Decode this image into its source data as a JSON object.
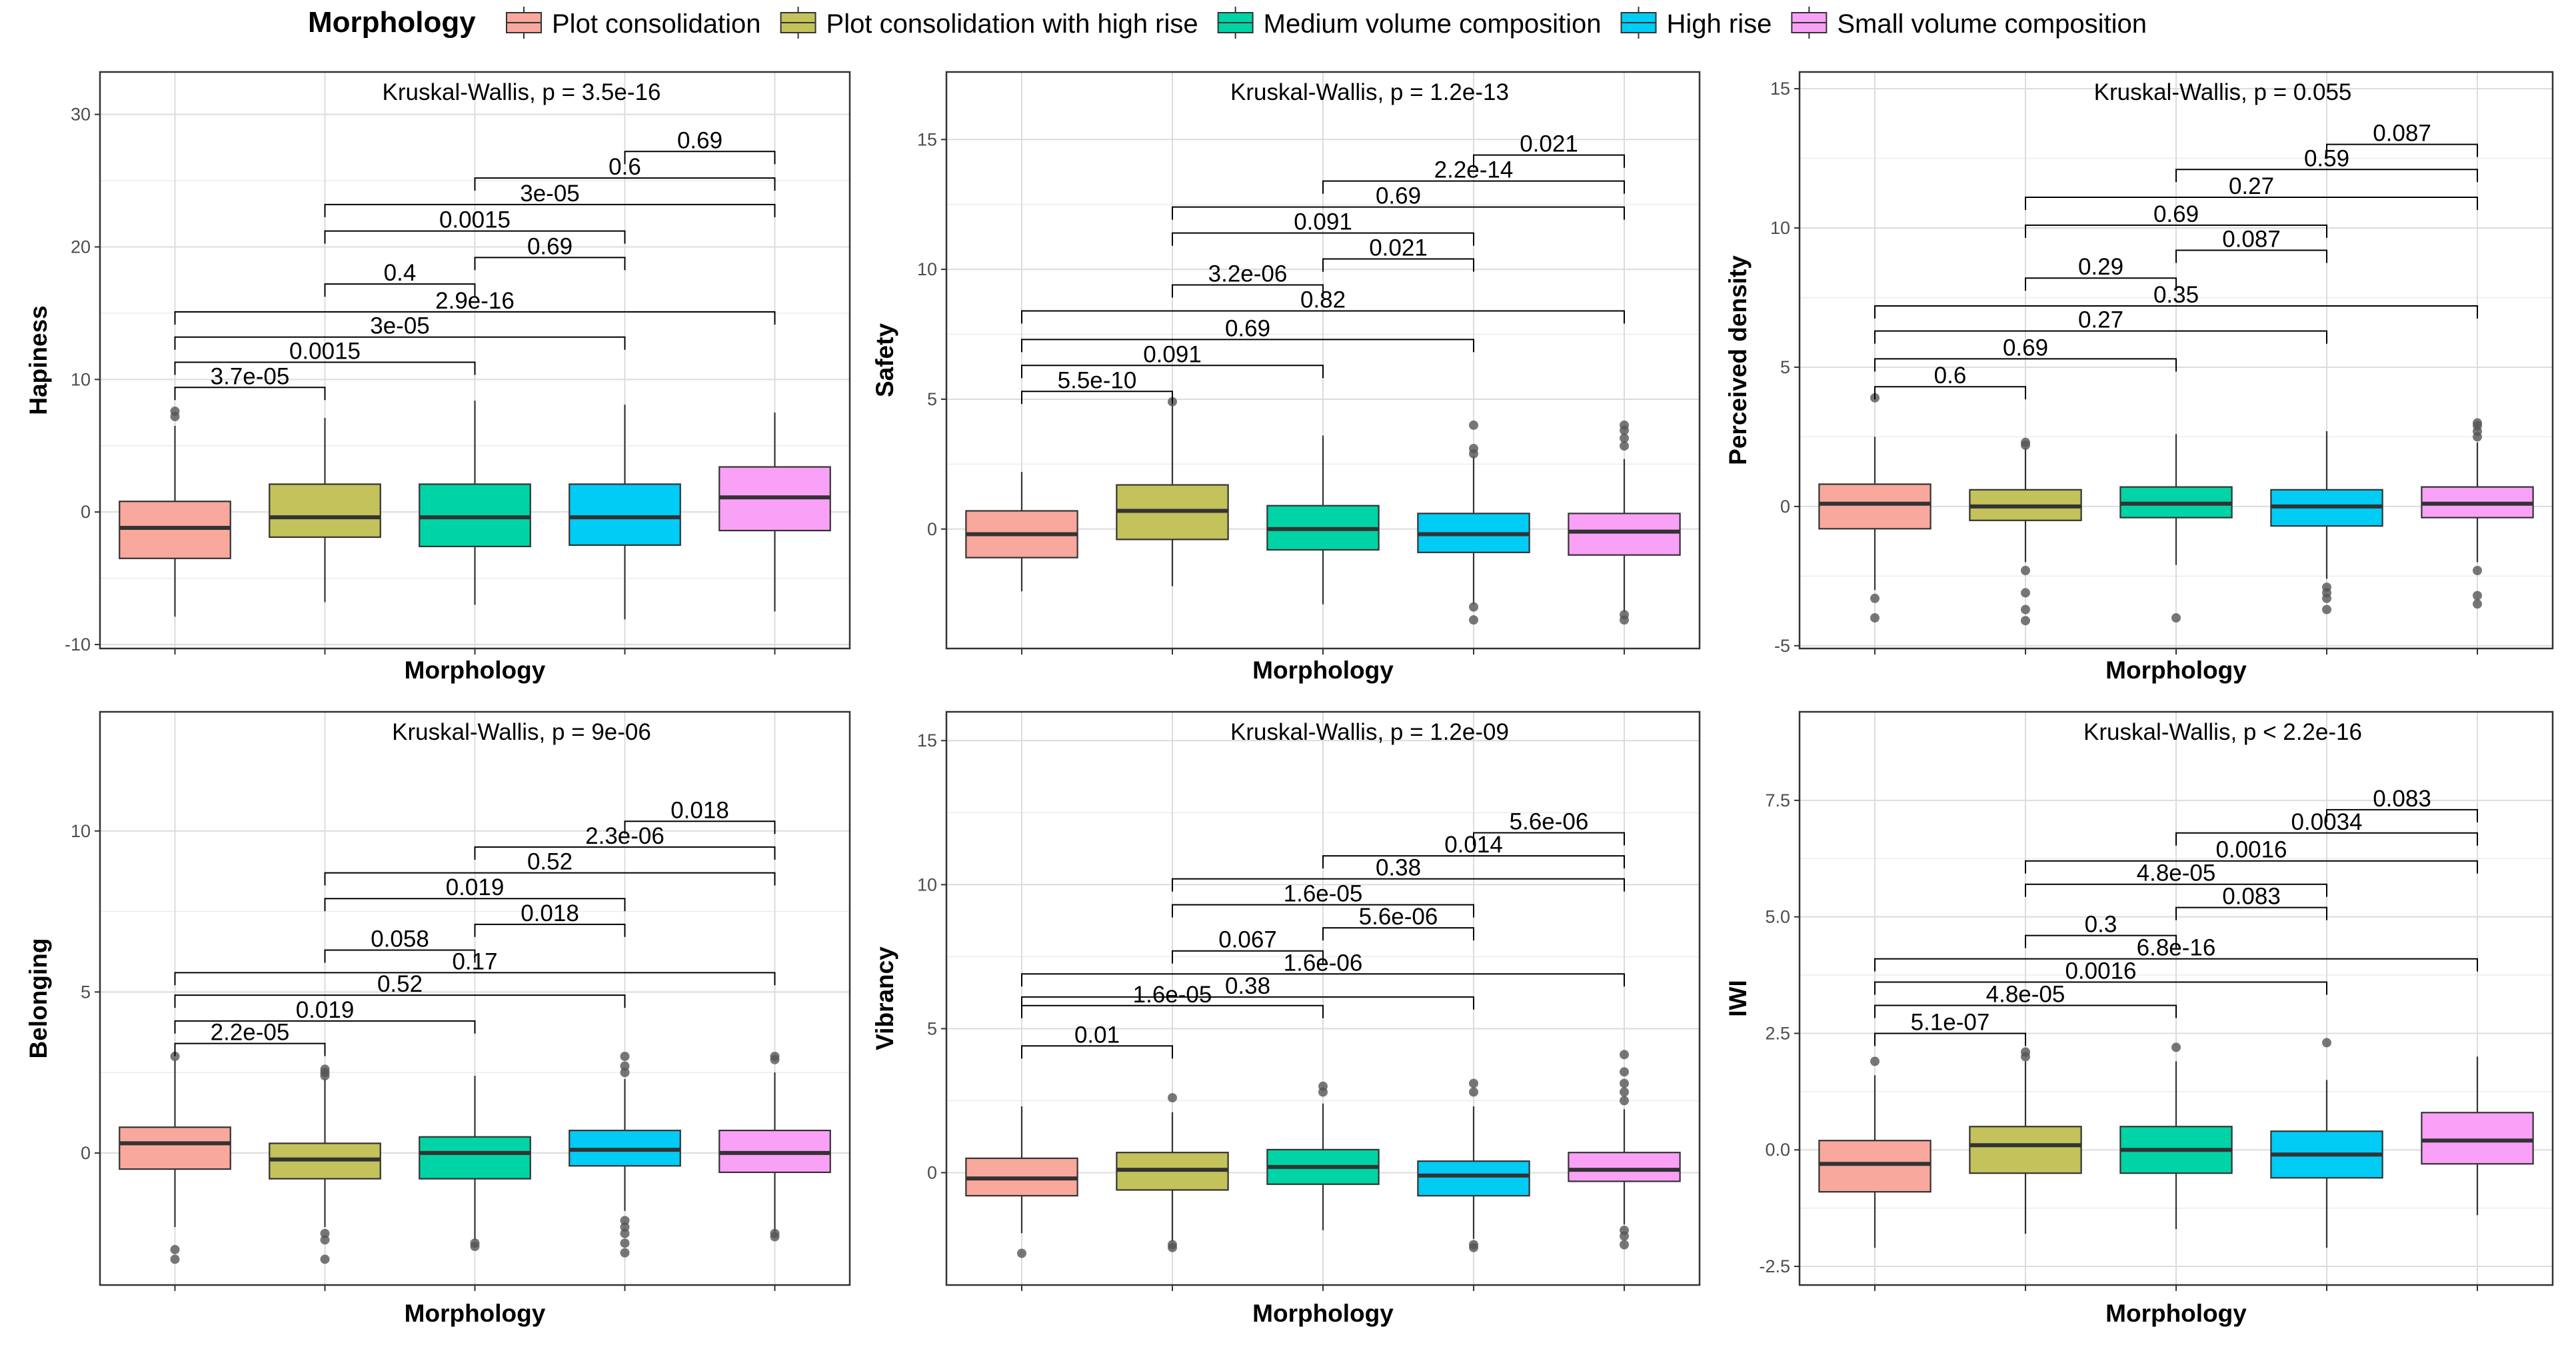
{
  "legend": {
    "title": "Morphology",
    "items": [
      {
        "label": "Plot consolidation",
        "color": "#F8A89C"
      },
      {
        "label": "Plot consolidation with high rise",
        "color": "#C3C25B"
      },
      {
        "label": "Medium volume composition",
        "color": "#00D4A6"
      },
      {
        "label": "High rise",
        "color": "#00CCF6"
      },
      {
        "label": "Small volume composition",
        "color": "#F9A1F6"
      }
    ]
  },
  "chart_data": [
    {
      "type": "box",
      "id": "p1",
      "title": "",
      "xlabel": "Morphology",
      "ylabel": "Hapiness",
      "annotation": "Kruskal-Wallis, p = 3.5e-16",
      "ylim": [
        -10.3,
        33.2
      ],
      "yticks": [
        -10,
        0,
        10,
        20,
        30
      ],
      "categories": [
        "Plot consolidation",
        "Plot consolidation with high rise",
        "Medium volume composition",
        "High rise",
        "Small volume composition"
      ],
      "boxes": [
        {
          "min": -7.9,
          "q1": -3.5,
          "median": -1.2,
          "q3": 0.8,
          "max": 6.5,
          "outliers": [
            7.2,
            7.6
          ]
        },
        {
          "min": -6.8,
          "q1": -1.9,
          "median": -0.4,
          "q3": 2.1,
          "max": 7.1,
          "outliers": []
        },
        {
          "min": -7.0,
          "q1": -2.6,
          "median": -0.4,
          "q3": 2.1,
          "max": 8.4,
          "outliers": []
        },
        {
          "min": -8.1,
          "q1": -2.5,
          "median": -0.4,
          "q3": 2.1,
          "max": 8.1,
          "outliers": []
        },
        {
          "min": -7.5,
          "q1": -1.4,
          "median": 1.1,
          "q3": 3.4,
          "max": 7.5,
          "outliers": []
        }
      ],
      "comparisons": [
        {
          "from": 1,
          "to": 2,
          "y": 9.4,
          "label": "3.7e-05"
        },
        {
          "from": 1,
          "to": 3,
          "y": 11.3,
          "label": "0.0015"
        },
        {
          "from": 1,
          "to": 4,
          "y": 13.2,
          "label": "3e-05"
        },
        {
          "from": 1,
          "to": 5,
          "y": 15.1,
          "label": "2.9e-16"
        },
        {
          "from": 2,
          "to": 3,
          "y": 17.2,
          "label": "0.4"
        },
        {
          "from": 3,
          "to": 4,
          "y": 19.2,
          "label": "0.69"
        },
        {
          "from": 2,
          "to": 4,
          "y": 21.2,
          "label": "0.0015"
        },
        {
          "from": 2,
          "to": 5,
          "y": 23.2,
          "label": "3e-05"
        },
        {
          "from": 3,
          "to": 5,
          "y": 25.2,
          "label": "0.6"
        },
        {
          "from": 4,
          "to": 5,
          "y": 27.2,
          "label": "0.69"
        }
      ]
    },
    {
      "type": "box",
      "id": "p2",
      "title": "",
      "xlabel": "Morphology",
      "ylabel": "Safety",
      "annotation": "Kruskal-Wallis, p = 1.2e-13",
      "ylim": [
        -4.6,
        17.6
      ],
      "yticks": [
        0,
        5,
        10,
        15
      ],
      "categories": [
        "Plot consolidation",
        "Plot consolidation with high rise",
        "Medium volume composition",
        "High rise",
        "Small volume composition"
      ],
      "boxes": [
        {
          "min": -2.4,
          "q1": -1.1,
          "median": -0.2,
          "q3": 0.7,
          "max": 2.2,
          "outliers": []
        },
        {
          "min": -2.2,
          "q1": -0.4,
          "median": 0.7,
          "q3": 1.7,
          "max": 4.8,
          "outliers": [
            4.9
          ]
        },
        {
          "min": -2.9,
          "q1": -0.8,
          "median": 0.0,
          "q3": 0.9,
          "max": 3.6,
          "outliers": []
        },
        {
          "min": -2.9,
          "q1": -0.9,
          "median": -0.2,
          "q3": 0.6,
          "max": 2.8,
          "outliers": [
            -3.0,
            -3.5,
            2.9,
            3.1,
            4.0
          ]
        },
        {
          "min": -3.2,
          "q1": -1.0,
          "median": -0.1,
          "q3": 0.6,
          "max": 2.7,
          "outliers": [
            -3.3,
            -3.5,
            3.2,
            3.5,
            3.8,
            4.0
          ]
        }
      ],
      "comparisons": [
        {
          "from": 1,
          "to": 2,
          "y": 5.3,
          "label": "5.5e-10"
        },
        {
          "from": 1,
          "to": 3,
          "y": 6.3,
          "label": "0.091"
        },
        {
          "from": 1,
          "to": 4,
          "y": 7.3,
          "label": "0.69"
        },
        {
          "from": 1,
          "to": 5,
          "y": 8.4,
          "label": "0.82"
        },
        {
          "from": 2,
          "to": 3,
          "y": 9.4,
          "label": "3.2e-06"
        },
        {
          "from": 3,
          "to": 4,
          "y": 10.4,
          "label": "0.021"
        },
        {
          "from": 2,
          "to": 4,
          "y": 11.4,
          "label": "0.091"
        },
        {
          "from": 2,
          "to": 5,
          "y": 12.4,
          "label": "0.69"
        },
        {
          "from": 3,
          "to": 5,
          "y": 13.4,
          "label": "2.2e-14"
        },
        {
          "from": 4,
          "to": 5,
          "y": 14.4,
          "label": "0.021"
        }
      ]
    },
    {
      "type": "box",
      "id": "p3",
      "title": "",
      "xlabel": "Morphology",
      "ylabel": "Perceived density",
      "annotation": "Kruskal-Wallis, p = 0.055",
      "ylim": [
        -5.1,
        15.6
      ],
      "yticks": [
        -5,
        0,
        5,
        10,
        15
      ],
      "categories": [
        "Plot consolidation",
        "Plot consolidation with high rise",
        "Medium volume composition",
        "High rise",
        "Small volume composition"
      ],
      "boxes": [
        {
          "min": -3.0,
          "q1": -0.8,
          "median": 0.1,
          "q3": 0.8,
          "max": 2.5,
          "outliers": [
            -3.3,
            -4.0,
            3.9
          ]
        },
        {
          "min": -2.0,
          "q1": -0.5,
          "median": 0.0,
          "q3": 0.6,
          "max": 2.1,
          "outliers": [
            -2.3,
            -3.1,
            -3.7,
            -4.1,
            2.2,
            2.3
          ]
        },
        {
          "min": -2.1,
          "q1": -0.4,
          "median": 0.1,
          "q3": 0.7,
          "max": 2.6,
          "outliers": [
            -4.0
          ]
        },
        {
          "min": -2.6,
          "q1": -0.7,
          "median": 0.0,
          "q3": 0.6,
          "max": 2.7,
          "outliers": [
            -2.9,
            -3.1,
            -3.3,
            -3.7
          ]
        },
        {
          "min": -2.0,
          "q1": -0.4,
          "median": 0.1,
          "q3": 0.7,
          "max": 2.3,
          "outliers": [
            -2.3,
            -3.2,
            -3.5,
            2.5,
            2.7,
            2.9,
            3.0
          ]
        }
      ],
      "comparisons": [
        {
          "from": 1,
          "to": 2,
          "y": 4.3,
          "label": "0.6"
        },
        {
          "from": 1,
          "to": 3,
          "y": 5.3,
          "label": "0.69"
        },
        {
          "from": 1,
          "to": 4,
          "y": 6.3,
          "label": "0.27"
        },
        {
          "from": 1,
          "to": 5,
          "y": 7.2,
          "label": "0.35"
        },
        {
          "from": 2,
          "to": 3,
          "y": 8.2,
          "label": "0.29"
        },
        {
          "from": 3,
          "to": 4,
          "y": 9.2,
          "label": "0.087"
        },
        {
          "from": 2,
          "to": 4,
          "y": 10.1,
          "label": "0.69"
        },
        {
          "from": 2,
          "to": 5,
          "y": 11.1,
          "label": "0.27"
        },
        {
          "from": 3,
          "to": 5,
          "y": 12.1,
          "label": "0.59"
        },
        {
          "from": 4,
          "to": 5,
          "y": 13.0,
          "label": "0.087"
        }
      ]
    },
    {
      "type": "box",
      "id": "p4",
      "title": "",
      "xlabel": "Morphology",
      "ylabel": "Belonging",
      "annotation": "Kruskal-Wallis, p = 9e-06",
      "ylim": [
        -4.1,
        13.7
      ],
      "yticks": [
        0,
        5,
        10
      ],
      "categories": [
        "Plot consolidation",
        "Plot consolidation with high rise",
        "Medium volume composition",
        "High rise",
        "Small volume composition"
      ],
      "boxes": [
        {
          "min": -2.3,
          "q1": -0.5,
          "median": 0.3,
          "q3": 0.8,
          "max": 2.9,
          "outliers": [
            -3.0,
            -3.3,
            3.0
          ]
        },
        {
          "min": -2.3,
          "q1": -0.8,
          "median": -0.2,
          "q3": 0.3,
          "max": 2.3,
          "outliers": [
            -2.5,
            -2.7,
            -3.3,
            2.4,
            2.5,
            2.6
          ]
        },
        {
          "min": -2.7,
          "q1": -0.8,
          "median": 0.0,
          "q3": 0.5,
          "max": 2.4,
          "outliers": [
            -2.8,
            -2.9
          ]
        },
        {
          "min": -1.8,
          "q1": -0.4,
          "median": 0.1,
          "q3": 0.7,
          "max": 2.3,
          "outliers": [
            -2.1,
            -2.3,
            -2.5,
            -2.8,
            -3.1,
            2.5,
            2.7,
            3.0
          ]
        },
        {
          "min": -2.5,
          "q1": -0.6,
          "median": 0.0,
          "q3": 0.7,
          "max": 2.5,
          "outliers": [
            -2.5,
            -2.6,
            2.9,
            3.0
          ]
        }
      ],
      "comparisons": [
        {
          "from": 1,
          "to": 2,
          "y": 3.4,
          "label": "2.2e-05"
        },
        {
          "from": 1,
          "to": 3,
          "y": 4.1,
          "label": "0.019"
        },
        {
          "from": 1,
          "to": 4,
          "y": 4.9,
          "label": "0.52"
        },
        {
          "from": 1,
          "to": 5,
          "y": 5.6,
          "label": "0.17"
        },
        {
          "from": 2,
          "to": 3,
          "y": 6.3,
          "label": "0.058"
        },
        {
          "from": 3,
          "to": 4,
          "y": 7.1,
          "label": "0.018"
        },
        {
          "from": 2,
          "to": 4,
          "y": 7.9,
          "label": "0.019"
        },
        {
          "from": 2,
          "to": 5,
          "y": 8.7,
          "label": "0.52"
        },
        {
          "from": 3,
          "to": 5,
          "y": 9.5,
          "label": "2.3e-06"
        },
        {
          "from": 4,
          "to": 5,
          "y": 10.3,
          "label": "0.018"
        }
      ]
    },
    {
      "type": "box",
      "id": "p5",
      "title": "",
      "xlabel": "Morphology",
      "ylabel": "Vibrancy",
      "annotation": "Kruskal-Wallis, p = 1.2e-09",
      "ylim": [
        -3.9,
        16.0
      ],
      "yticks": [
        0,
        5,
        10,
        15
      ],
      "categories": [
        "Plot consolidation",
        "Plot consolidation with high rise",
        "Medium volume composition",
        "High rise",
        "Small volume composition"
      ],
      "boxes": [
        {
          "min": -2.1,
          "q1": -0.8,
          "median": -0.2,
          "q3": 0.5,
          "max": 2.3,
          "outliers": [
            -2.8
          ]
        },
        {
          "min": -2.4,
          "q1": -0.6,
          "median": 0.1,
          "q3": 0.7,
          "max": 2.1,
          "outliers": [
            -2.5,
            -2.6,
            2.6
          ]
        },
        {
          "min": -2.0,
          "q1": -0.4,
          "median": 0.2,
          "q3": 0.8,
          "max": 2.4,
          "outliers": [
            2.8,
            3.0
          ]
        },
        {
          "min": -2.3,
          "q1": -0.8,
          "median": -0.1,
          "q3": 0.4,
          "max": 2.3,
          "outliers": [
            -2.5,
            -2.6,
            2.8,
            3.1
          ]
        },
        {
          "min": -1.8,
          "q1": -0.3,
          "median": 0.1,
          "q3": 0.7,
          "max": 2.2,
          "outliers": [
            -2.0,
            -2.2,
            -2.5,
            2.5,
            2.8,
            3.1,
            3.5,
            4.1
          ]
        }
      ],
      "comparisons": [
        {
          "from": 1,
          "to": 2,
          "y": 4.4,
          "label": "0.01"
        },
        {
          "from": 1,
          "to": 3,
          "y": 5.8,
          "label": "1.6e-05"
        },
        {
          "from": 1,
          "to": 4,
          "y": 6.1,
          "label": "0.38"
        },
        {
          "from": 1,
          "to": 5,
          "y": 6.9,
          "label": "1.6e-06"
        },
        {
          "from": 2,
          "to": 3,
          "y": 7.7,
          "label": "0.067"
        },
        {
          "from": 3,
          "to": 4,
          "y": 8.5,
          "label": "5.6e-06"
        },
        {
          "from": 2,
          "to": 4,
          "y": 9.3,
          "label": "1.6e-05"
        },
        {
          "from": 2,
          "to": 5,
          "y": 10.2,
          "label": "0.38"
        },
        {
          "from": 3,
          "to": 5,
          "y": 11.0,
          "label": "0.014"
        },
        {
          "from": 4,
          "to": 5,
          "y": 11.8,
          "label": "5.6e-06"
        }
      ]
    },
    {
      "type": "box",
      "id": "p6",
      "title": "",
      "xlabel": "Morphology",
      "ylabel": "IWI",
      "annotation": "Kruskal-Wallis, p < 2.2e-16",
      "ylim": [
        -2.9,
        9.4
      ],
      "yticks": [
        -2.5,
        0.0,
        2.5,
        5.0,
        7.5
      ],
      "yticklabels": [
        "-2.5",
        "0.0",
        "2.5",
        "5.0",
        "7.5"
      ],
      "categories": [
        "Plot consolidation",
        "Plot consolidation with high rise",
        "Medium volume composition",
        "High rise",
        "Small volume composition"
      ],
      "boxes": [
        {
          "min": -2.1,
          "q1": -0.9,
          "median": -0.3,
          "q3": 0.2,
          "max": 1.6,
          "outliers": [
            1.9
          ]
        },
        {
          "min": -1.8,
          "q1": -0.5,
          "median": 0.1,
          "q3": 0.5,
          "max": 1.9,
          "outliers": [
            2.0,
            2.1
          ]
        },
        {
          "min": -1.7,
          "q1": -0.5,
          "median": 0.0,
          "q3": 0.5,
          "max": 1.9,
          "outliers": [
            2.2
          ]
        },
        {
          "min": -2.1,
          "q1": -0.6,
          "median": -0.1,
          "q3": 0.4,
          "max": 1.5,
          "outliers": [
            2.3
          ]
        },
        {
          "min": -1.4,
          "q1": -0.3,
          "median": 0.2,
          "q3": 0.8,
          "max": 2.0,
          "outliers": []
        }
      ],
      "comparisons": [
        {
          "from": 1,
          "to": 2,
          "y": 2.5,
          "label": "5.1e-07"
        },
        {
          "from": 1,
          "to": 3,
          "y": 3.1,
          "label": "4.8e-05"
        },
        {
          "from": 1,
          "to": 4,
          "y": 3.6,
          "label": "0.0016"
        },
        {
          "from": 1,
          "to": 5,
          "y": 4.1,
          "label": "6.8e-16"
        },
        {
          "from": 2,
          "to": 3,
          "y": 4.6,
          "label": "0.3"
        },
        {
          "from": 3,
          "to": 4,
          "y": 5.2,
          "label": "0.083"
        },
        {
          "from": 2,
          "to": 4,
          "y": 5.7,
          "label": "4.8e-05"
        },
        {
          "from": 2,
          "to": 5,
          "y": 6.2,
          "label": "0.0016"
        },
        {
          "from": 3,
          "to": 5,
          "y": 6.8,
          "label": "0.0034"
        },
        {
          "from": 4,
          "to": 5,
          "y": 7.3,
          "label": "0.083"
        }
      ]
    }
  ]
}
